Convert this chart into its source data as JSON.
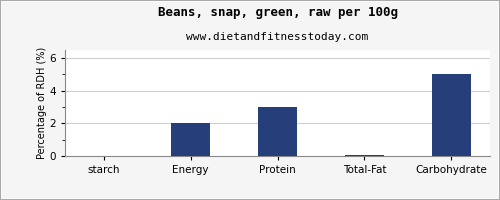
{
  "title": "Beans, snap, green, raw per 100g",
  "subtitle": "www.dietandfitnesstoday.com",
  "categories": [
    "starch",
    "Energy",
    "Protein",
    "Total-Fat",
    "Carbohydrate"
  ],
  "values": [
    0.0,
    2.0,
    3.0,
    0.05,
    5.0
  ],
  "bar_color": "#263f7a",
  "ylabel": "Percentage of RDH (%)",
  "ylim": [
    0,
    6.5
  ],
  "yticks": [
    0,
    2,
    4,
    6
  ],
  "background_color": "#f5f5f5",
  "plot_background": "#ffffff",
  "title_fontsize": 9,
  "subtitle_fontsize": 8,
  "ylabel_fontsize": 7,
  "tick_fontsize": 7.5,
  "bar_width": 0.45
}
